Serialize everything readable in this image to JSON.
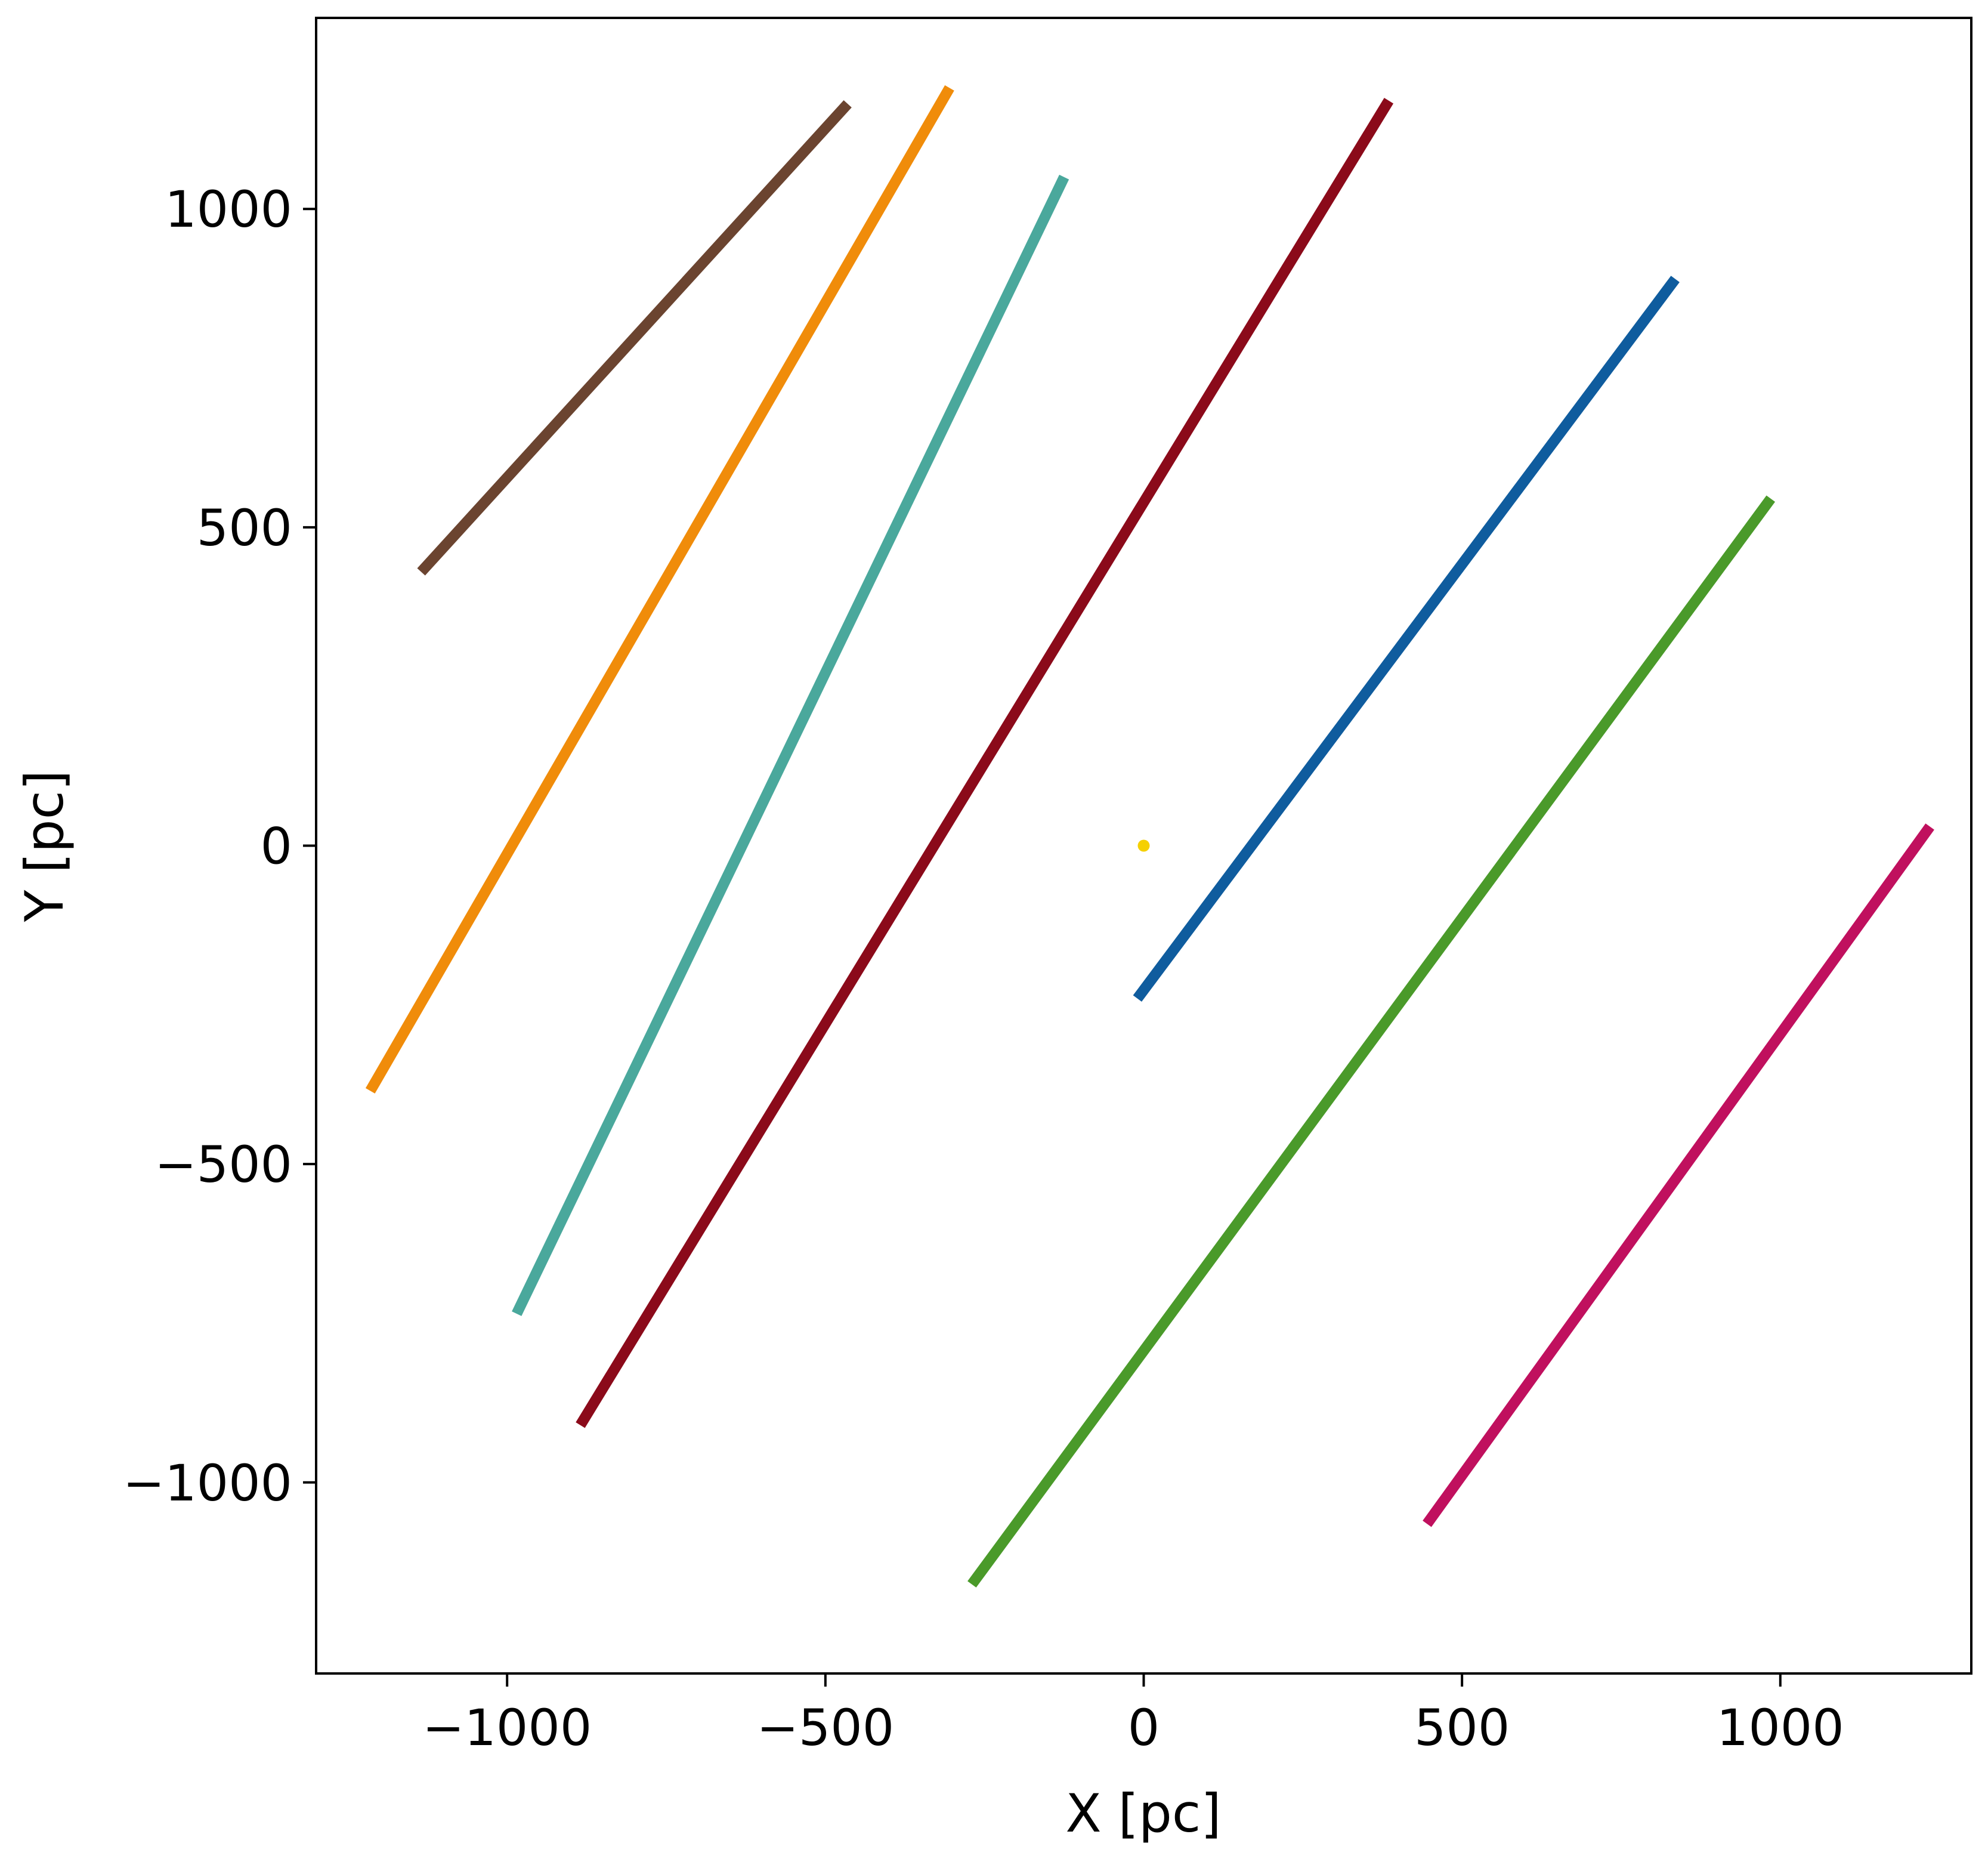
{
  "chart_data": {
    "type": "line",
    "title": "",
    "xlabel": "X [pc]",
    "ylabel": "Y [pc]",
    "xlim": [
      -1300,
      1300
    ],
    "ylim": [
      -1300,
      1300
    ],
    "xticks": [
      -1000,
      -500,
      0,
      500,
      1000
    ],
    "yticks": [
      -1000,
      -500,
      0,
      500,
      1000
    ],
    "xtick_labels": [
      "−1000",
      "−500",
      "0",
      "500",
      "1000"
    ],
    "ytick_labels": [
      "−1000",
      "−500",
      "0",
      "500",
      "1000"
    ],
    "grid": false,
    "legend": "none",
    "series": [
      {
        "color": "#6b4430",
        "x": [
          -1135,
          -465
        ],
        "y": [
          430,
          1165
        ]
      },
      {
        "color": "#f08c0a",
        "x": [
          -1215,
          -305
        ],
        "y": [
          -385,
          1190
        ]
      },
      {
        "color": "#4aa89c",
        "x": [
          -985,
          -125
        ],
        "y": [
          -735,
          1050
        ]
      },
      {
        "color": "#8b0a1a",
        "x": [
          -885,
          385
        ],
        "y": [
          -910,
          1170
        ]
      },
      {
        "color": "#0f5c9e",
        "x": [
          -10,
          835
        ],
        "y": [
          -240,
          890
        ]
      },
      {
        "color": "#4a9a2a",
        "x": [
          -270,
          985
        ],
        "y": [
          -1160,
          545
        ]
      },
      {
        "color": "#c0105e",
        "x": [
          445,
          1235
        ],
        "y": [
          -1065,
          30
        ]
      }
    ],
    "markers": [
      {
        "color": "#f5d000",
        "x": 0,
        "y": 0
      }
    ]
  }
}
